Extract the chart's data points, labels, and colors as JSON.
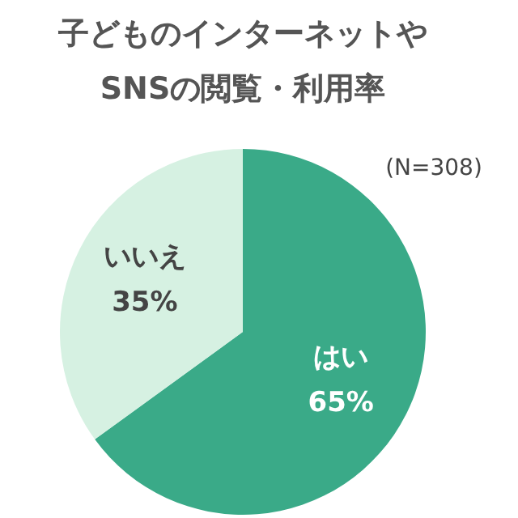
{
  "chart_data": {
    "type": "pie",
    "title": "子どものインターネットや\nSNSの閲覧・利用率",
    "annotations": [
      "(N=308)"
    ],
    "categories": [
      "はい",
      "いいえ"
    ],
    "values": [
      65,
      35
    ],
    "colors": [
      "#3aaa88",
      "#d6f1e2"
    ],
    "value_labels": [
      "65%",
      "35%"
    ]
  }
}
